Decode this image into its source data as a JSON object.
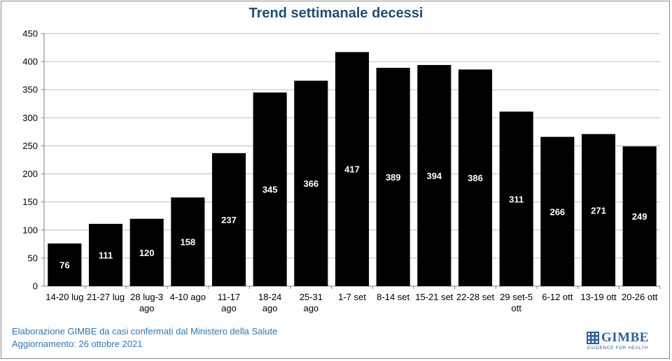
{
  "chart_data": {
    "type": "bar",
    "title": "Trend settimanale decessi",
    "categories": [
      [
        "14-20 lug"
      ],
      [
        "21-27 lug"
      ],
      [
        "28 lug-3",
        "ago"
      ],
      [
        "4-10 ago"
      ],
      [
        "11-17",
        "ago"
      ],
      [
        "18-24",
        "ago"
      ],
      [
        "25-31",
        "ago"
      ],
      [
        "1-7 set"
      ],
      [
        "8-14 set"
      ],
      [
        "15-21 set"
      ],
      [
        "22-28 set"
      ],
      [
        "29 set-5",
        "ott"
      ],
      [
        "6-12 ott"
      ],
      [
        "13-19 ott"
      ],
      [
        "20-26 ott"
      ]
    ],
    "values": [
      76,
      111,
      120,
      158,
      237,
      345,
      366,
      417,
      389,
      394,
      386,
      311,
      266,
      271,
      249
    ],
    "ylim": [
      0,
      450
    ],
    "yticks": [
      0,
      50,
      100,
      150,
      200,
      250,
      300,
      350,
      400,
      450
    ],
    "xlabel": "",
    "ylabel": "",
    "grid": true,
    "bar_color": "#000000",
    "label_color": "#ffffff"
  },
  "footer": {
    "line1": "Elaborazione GIMBE da casi confermati dal Ministero della Salute",
    "line2": "Aggiornamento: 26 ottobre 2021"
  },
  "logo": {
    "name": "GIMBE",
    "tagline": "EVIDENCE FOR HEALTH",
    "color": "#2e5f9e"
  },
  "colors": {
    "title": "#1f4e79",
    "footer": "#2e75b6",
    "grid": "#bfbfbf"
  }
}
